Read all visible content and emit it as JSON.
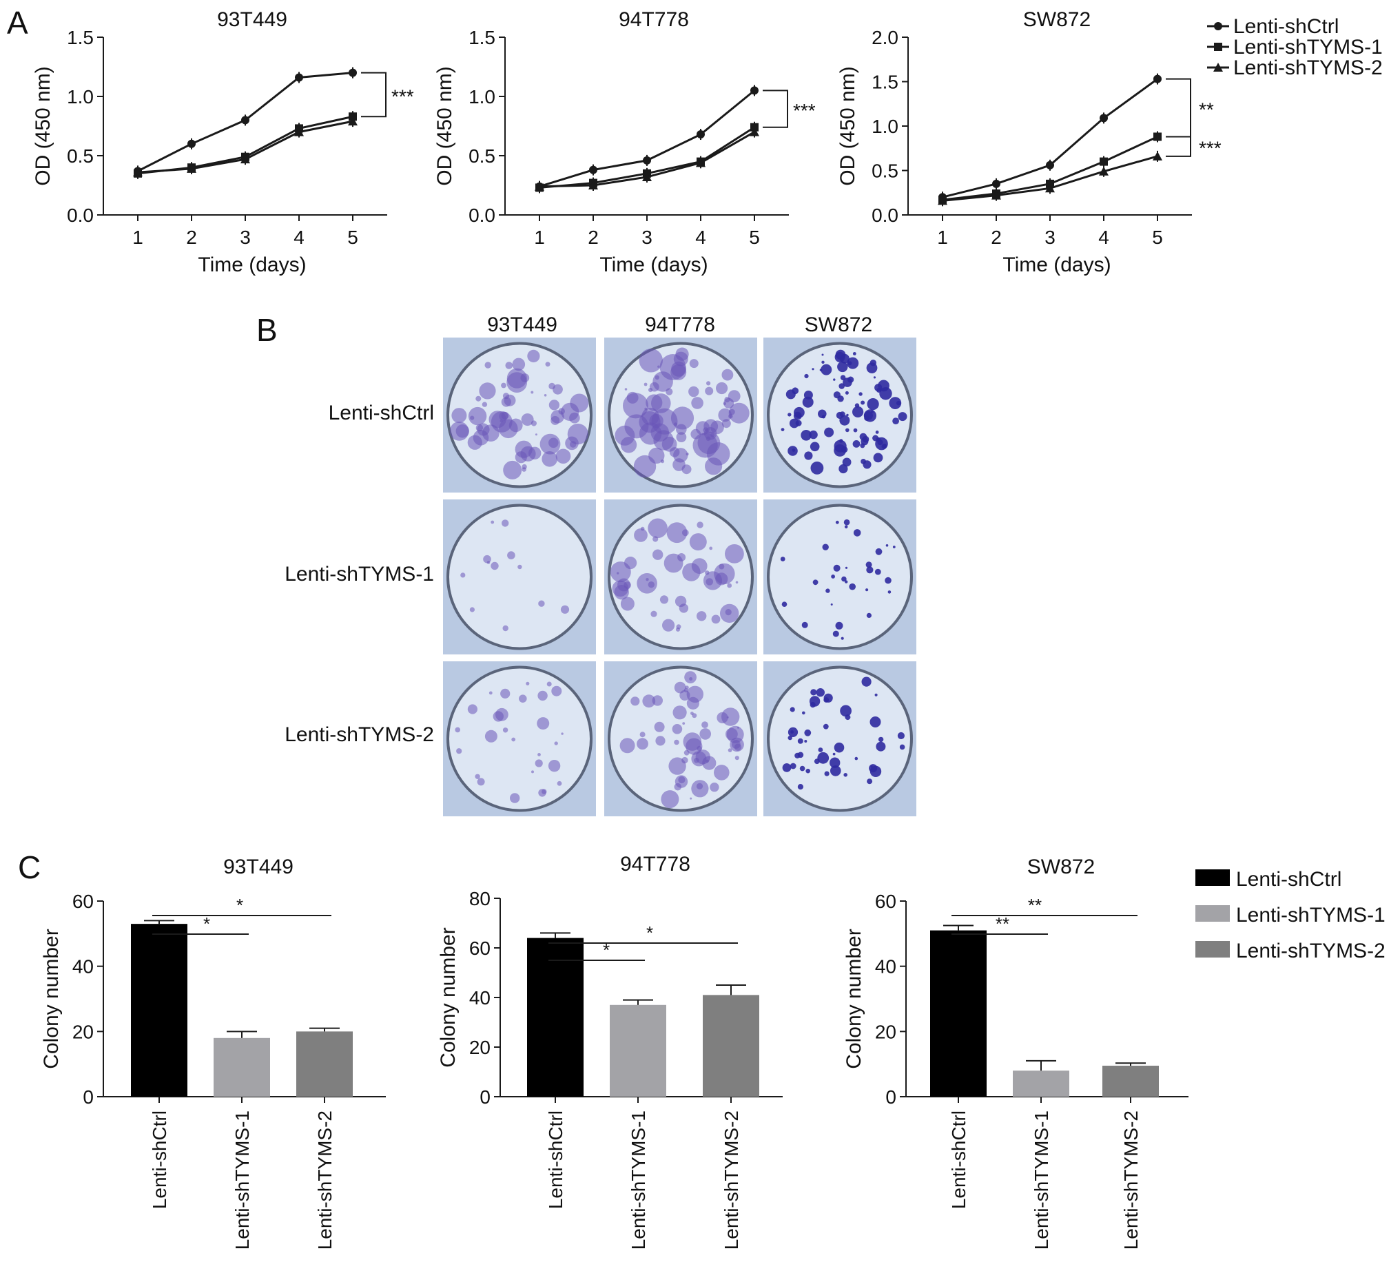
{
  "panels": {
    "a": "A",
    "b": "B",
    "c": "C"
  },
  "panel_b": {
    "columns": [
      "93T449",
      "94T778",
      "SW872"
    ],
    "rows": [
      "Lenti-shCtrl",
      "Lenti-shTYMS-1",
      "Lenti-shTYMS-2"
    ]
  },
  "colors": {
    "shCtrl_bar": "#000000",
    "shTYMS1_bar": "#a3a3a7",
    "shTYMS2_bar": "#7f7f7f",
    "line": "#1a1a1a",
    "plate_bg": "#c7d5ea",
    "stain": "#6a55b8"
  },
  "chart_data": [
    {
      "type": "line",
      "title": "93T449",
      "xlabel": "Time (days)",
      "ylabel": "OD (450 nm)",
      "x": [
        1,
        2,
        3,
        4,
        5
      ],
      "ylim": [
        0,
        1.5
      ],
      "yticks": [
        "0.0",
        "0.5",
        "1.0",
        "1.5"
      ],
      "series": [
        {
          "name": "Lenti-shCtrl",
          "marker": "circle",
          "values": [
            0.37,
            0.6,
            0.8,
            1.16,
            1.2
          ]
        },
        {
          "name": "Lenti-shTYMS-1",
          "marker": "square",
          "values": [
            0.35,
            0.4,
            0.49,
            0.73,
            0.83
          ]
        },
        {
          "name": "Lenti-shTYMS-2",
          "marker": "triangle",
          "values": [
            0.36,
            0.39,
            0.47,
            0.7,
            0.79
          ]
        }
      ],
      "significance": [
        {
          "label": "***"
        }
      ],
      "legend": "none"
    },
    {
      "type": "line",
      "title": "94T778",
      "xlabel": "Time (days)",
      "ylabel": "OD (450 nm)",
      "x": [
        1,
        2,
        3,
        4,
        5
      ],
      "ylim": [
        0,
        1.5
      ],
      "yticks": [
        "0.0",
        "0.5",
        "1.0",
        "1.5"
      ],
      "series": [
        {
          "name": "Lenti-shCtrl",
          "marker": "circle",
          "values": [
            0.24,
            0.38,
            0.46,
            0.68,
            1.05
          ]
        },
        {
          "name": "Lenti-shTYMS-1",
          "marker": "square",
          "values": [
            0.23,
            0.27,
            0.35,
            0.45,
            0.74
          ]
        },
        {
          "name": "Lenti-shTYMS-2",
          "marker": "triangle",
          "values": [
            0.24,
            0.25,
            0.32,
            0.44,
            0.7
          ]
        }
      ],
      "significance": [
        {
          "label": "***"
        }
      ],
      "legend": "none"
    },
    {
      "type": "line",
      "title": "SW872",
      "xlabel": "Time (days)",
      "ylabel": "OD (450 nm)",
      "x": [
        1,
        2,
        3,
        4,
        5
      ],
      "ylim": [
        0,
        2.0
      ],
      "yticks": [
        "0.0",
        "0.5",
        "1.0",
        "1.5",
        "2.0"
      ],
      "series": [
        {
          "name": "Lenti-shCtrl",
          "marker": "circle",
          "values": [
            0.2,
            0.35,
            0.56,
            1.09,
            1.53
          ]
        },
        {
          "name": "Lenti-shTYMS-1",
          "marker": "square",
          "values": [
            0.17,
            0.24,
            0.35,
            0.6,
            0.88
          ]
        },
        {
          "name": "Lenti-shTYMS-2",
          "marker": "triangle",
          "values": [
            0.16,
            0.22,
            0.3,
            0.49,
            0.66
          ]
        }
      ],
      "significance": [
        {
          "label": "**"
        },
        {
          "label": "***"
        }
      ],
      "legend": "right"
    },
    {
      "type": "bar",
      "title": "93T449",
      "xlabel": "",
      "ylabel": "Colony number",
      "categories": [
        "Lenti-shCtrl",
        "Lenti-shTYMS-1",
        "Lenti-shTYMS-2"
      ],
      "values": [
        53,
        18,
        20
      ],
      "errors": [
        1,
        2,
        1
      ],
      "ylim": [
        0,
        60
      ],
      "yticks": [
        "0",
        "20",
        "40",
        "60"
      ],
      "significance": [
        {
          "label": "*"
        },
        {
          "label": "*"
        }
      ],
      "legend": "none"
    },
    {
      "type": "bar",
      "title": "94T778",
      "xlabel": "",
      "ylabel": "Colony number",
      "categories": [
        "Lenti-shCtrl",
        "Lenti-shTYMS-1",
        "Lenti-shTYMS-2"
      ],
      "values": [
        64,
        37,
        41
      ],
      "errors": [
        2,
        2,
        4
      ],
      "ylim": [
        0,
        80
      ],
      "yticks": [
        "0",
        "20",
        "40",
        "60",
        "80"
      ],
      "significance": [
        {
          "label": "*"
        },
        {
          "label": "*"
        }
      ],
      "legend": "none"
    },
    {
      "type": "bar",
      "title": "SW872",
      "xlabel": "",
      "ylabel": "Colony number",
      "categories": [
        "Lenti-shCtrl",
        "Lenti-shTYMS-1",
        "Lenti-shTYMS-2"
      ],
      "values": [
        51,
        8,
        9.5
      ],
      "errors": [
        1.5,
        3,
        0.8
      ],
      "ylim": [
        0,
        60
      ],
      "yticks": [
        "0",
        "20",
        "40",
        "60"
      ],
      "significance": [
        {
          "label": "**"
        },
        {
          "label": "**"
        }
      ],
      "legend": "right"
    }
  ]
}
